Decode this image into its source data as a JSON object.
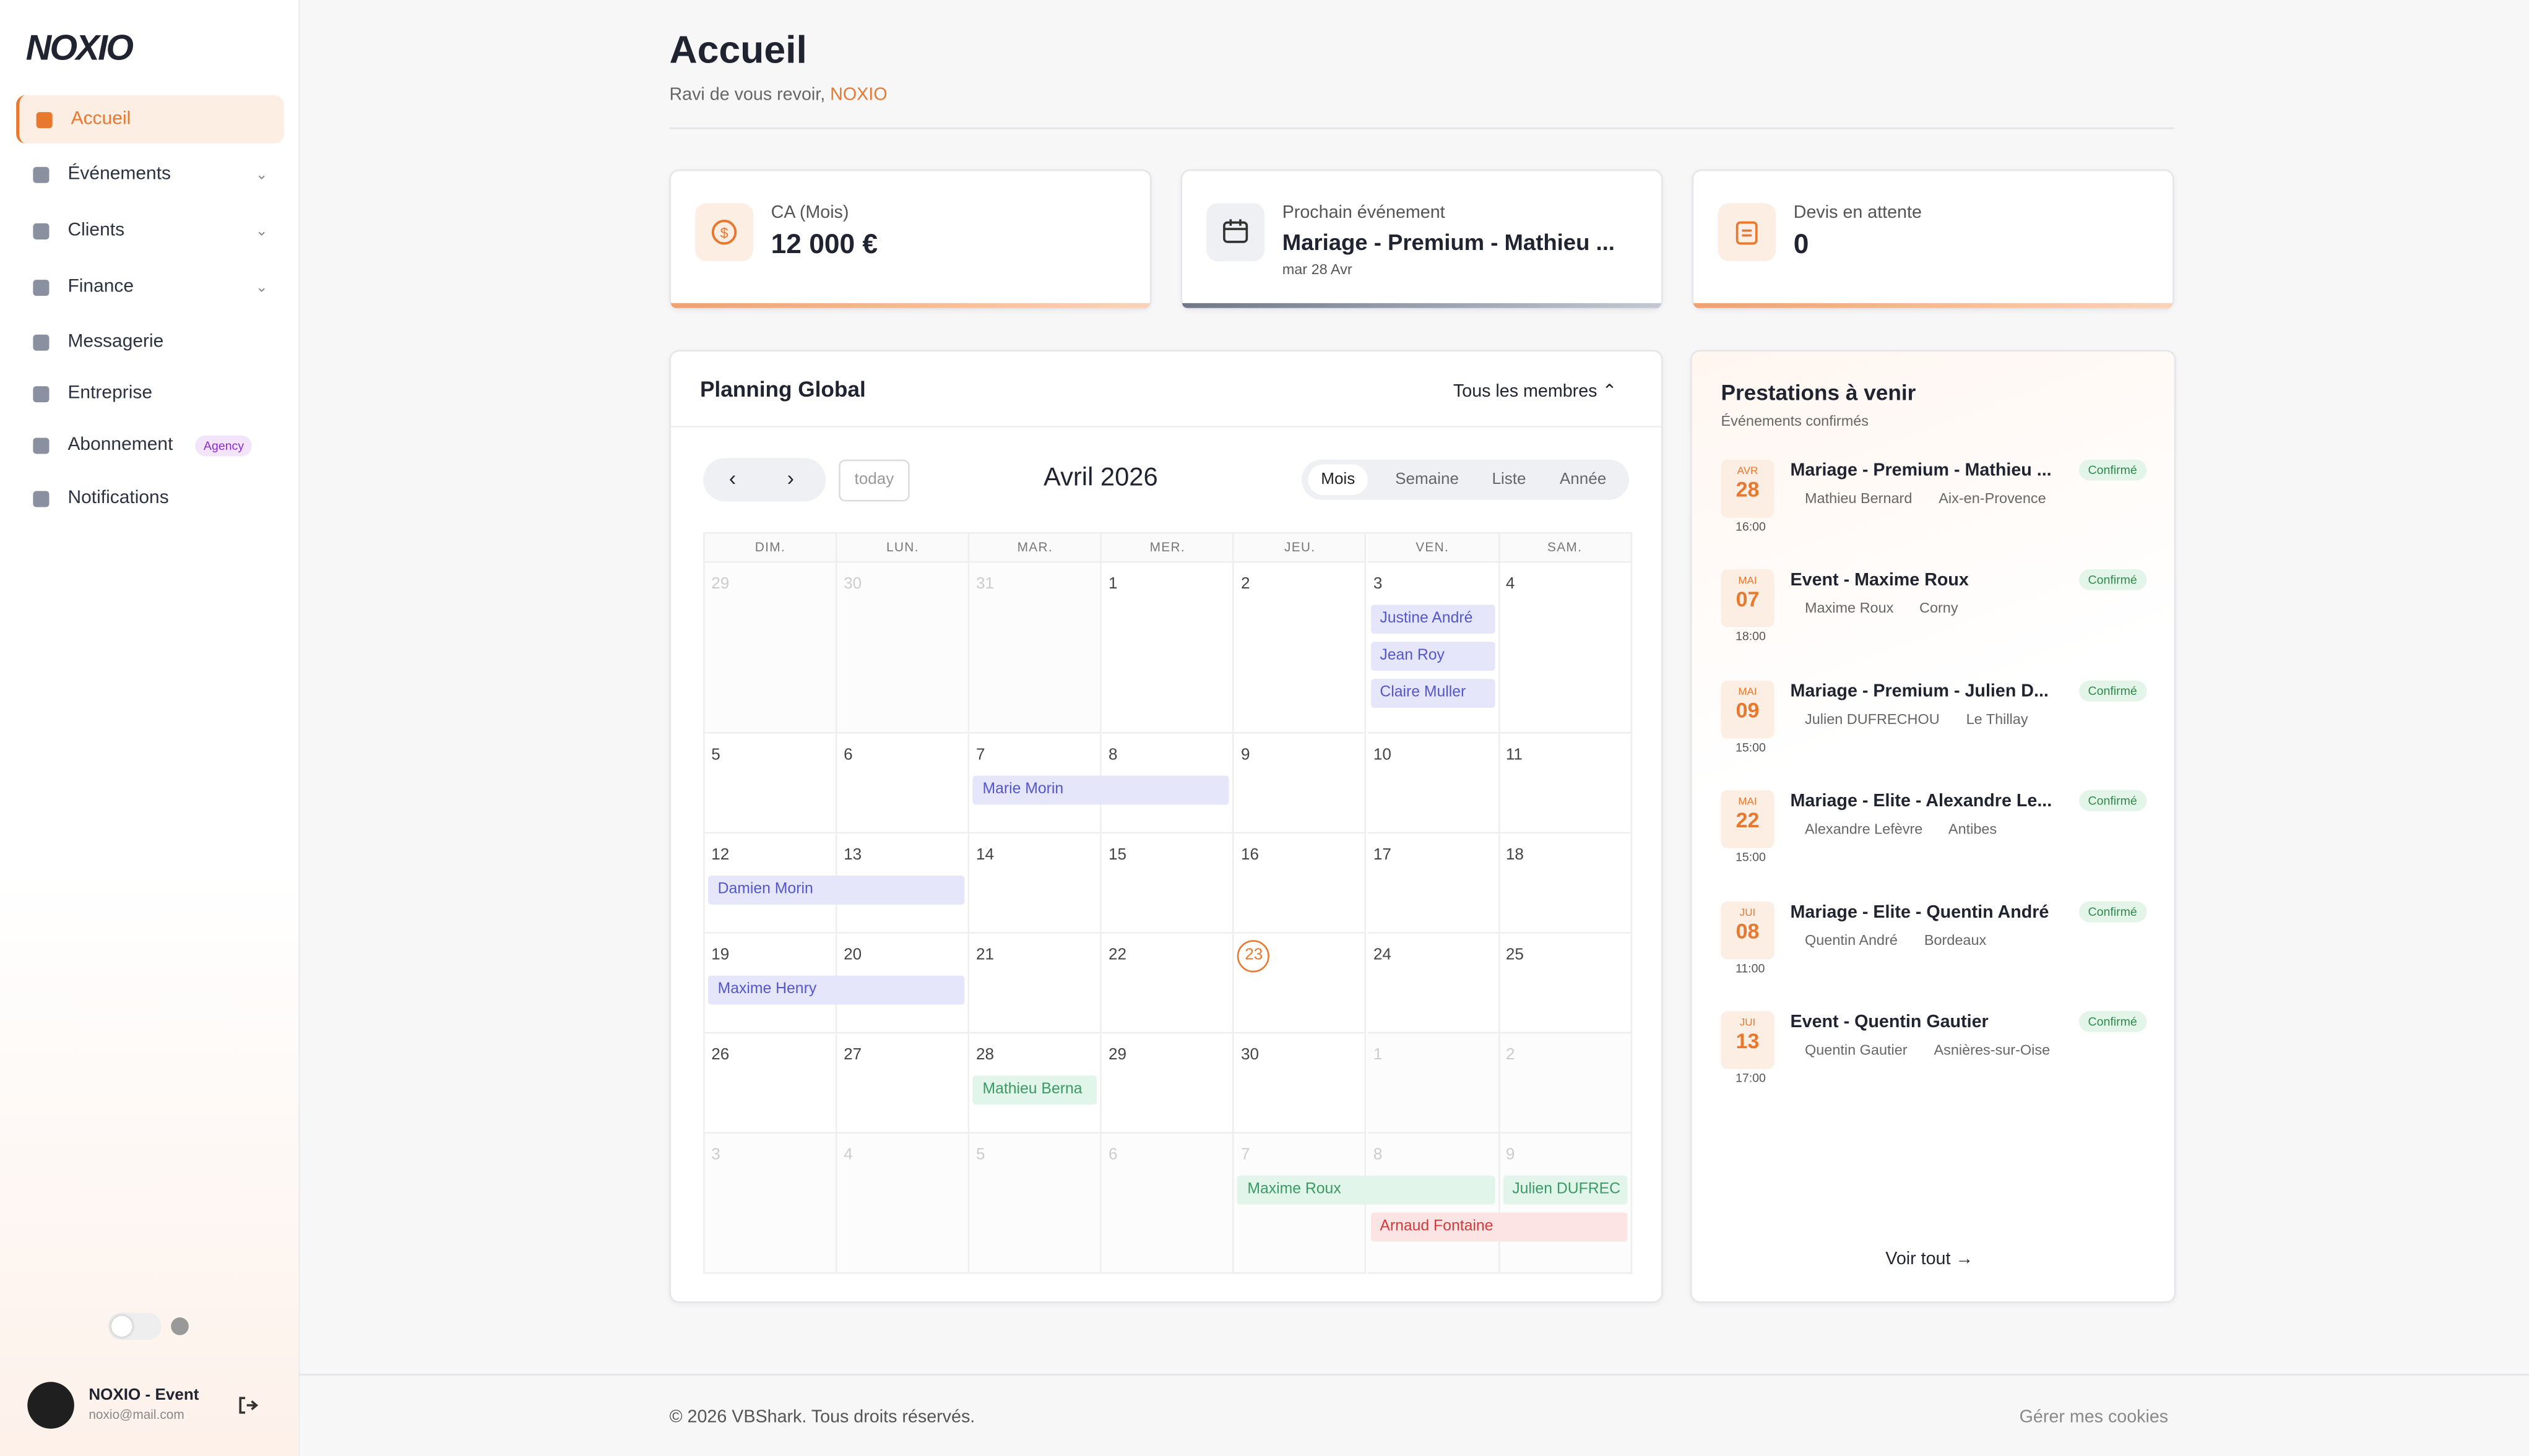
{
  "sidebar": {
    "logo": "NOXIO",
    "nav": [
      {
        "label": "Accueil"
      },
      {
        "label": "Événements"
      },
      {
        "label": "Clients"
      },
      {
        "label": "Finance"
      },
      {
        "label": "Messagerie"
      },
      {
        "label": "Entreprise"
      },
      {
        "label": "Abonnement",
        "badge": "Agency"
      },
      {
        "label": "Notifications"
      }
    ],
    "user": {
      "name": "NOXIO - Event",
      "email": "noxio@mail.com"
    }
  },
  "header": {
    "title": "Accueil",
    "subtitle": "Ravi de vous revoir,",
    "user": "NOXIO"
  },
  "stats": [
    {
      "label": "CA (Mois)",
      "value": "12 000 €"
    },
    {
      "label": "Prochain événement",
      "value": "Mariage - Premium - Mathieu ...",
      "sub": "mar 28 Avr"
    },
    {
      "label": "Devis en attente",
      "value": "0"
    }
  ],
  "planning": {
    "title": "Planning Global",
    "filter": "Tous les membres",
    "today": "today",
    "month": "Avril 2026",
    "views": [
      "Mois",
      "Semaine",
      "Liste",
      "Année"
    ],
    "weekdays": [
      "DIM.",
      "LUN.",
      "MAR.",
      "MER.",
      "JEU.",
      "VEN.",
      "SAM."
    ],
    "weeks": [
      [
        "29",
        "30",
        "31",
        "1",
        "2",
        "3",
        "4"
      ],
      [
        "5",
        "6",
        "7",
        "8",
        "9",
        "10",
        "11"
      ],
      [
        "12",
        "13",
        "14",
        "15",
        "16",
        "17",
        "18"
      ],
      [
        "19",
        "20",
        "21",
        "22",
        "23",
        "24",
        "25"
      ],
      [
        "26",
        "27",
        "28",
        "29",
        "30",
        "1",
        "2"
      ],
      [
        "3",
        "4",
        "5",
        "6",
        "7",
        "8",
        "9"
      ]
    ],
    "events": [
      "Justine André",
      "Jean Roy",
      "Claire Muller",
      "Marie Morin",
      "Damien Morin",
      "Maxime Henry",
      "Mathieu Berna",
      "Maxime Roux",
      "Julien DUFREC",
      "Arnaud Fontaine"
    ]
  },
  "upcoming": {
    "title": "Prestations à venir",
    "subtitle": "Événements confirmés",
    "items": [
      {
        "month": "AVR",
        "day": "28",
        "title": "Mariage - Premium - Mathieu ...",
        "status": "Confirmé",
        "client": "Mathieu Bernard",
        "location": "Aix-en-Provence",
        "time": "16:00"
      },
      {
        "month": "MAI",
        "day": "07",
        "title": "Event - Maxime Roux",
        "status": "Confirmé",
        "client": "Maxime Roux",
        "location": "Corny",
        "time": "18:00"
      },
      {
        "month": "MAI",
        "day": "09",
        "title": "Mariage - Premium - Julien D...",
        "status": "Confirmé",
        "client": "Julien DUFRECHOU",
        "location": "Le Thillay",
        "time": "15:00"
      },
      {
        "month": "MAI",
        "day": "22",
        "title": "Mariage - Elite - Alexandre Le...",
        "status": "Confirmé",
        "client": "Alexandre Lefèvre",
        "location": "Antibes",
        "time": "15:00"
      },
      {
        "month": "JUI",
        "day": "08",
        "title": "Mariage - Elite - Quentin André",
        "status": "Confirmé",
        "client": "Quentin André",
        "location": "Bordeaux",
        "time": "11:00"
      },
      {
        "month": "JUI",
        "day": "13",
        "title": "Event - Quentin Gautier",
        "status": "Confirmé",
        "client": "Quentin Gautier",
        "location": "Asnières-sur-Oise",
        "time": "17:00"
      }
    ],
    "more": "Voir tout"
  },
  "footer": {
    "copyright": "© 2026 VBShark. Tous droits réservés.",
    "cookies": "Gérer mes cookies"
  }
}
